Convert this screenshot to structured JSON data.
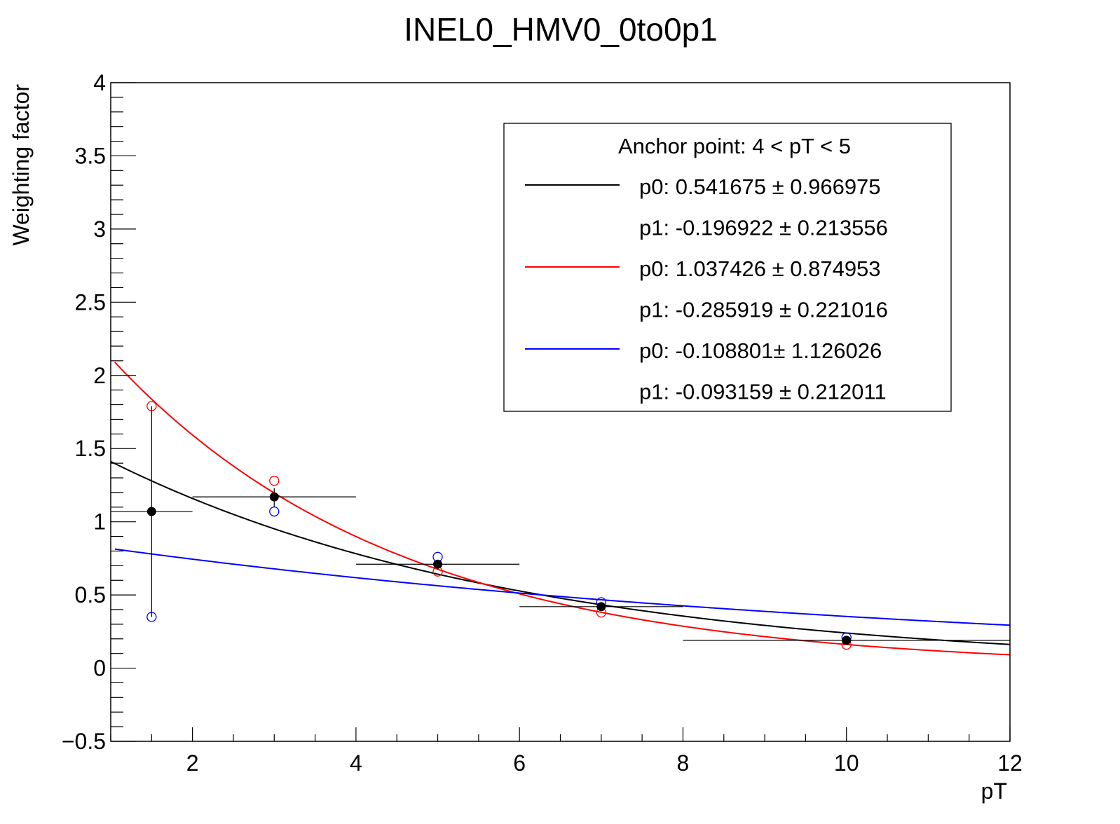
{
  "chart_data": {
    "type": "scatter",
    "title": "INEL0_HMV0_0to0p1",
    "xlabel": "pT",
    "ylabel": "Weighting factor",
    "xlim": [
      1,
      12
    ],
    "ylim": [
      -0.5,
      4
    ],
    "xticks": [
      2,
      4,
      6,
      8,
      10,
      12
    ],
    "xtick_labels": [
      "2",
      "4",
      "6",
      "8",
      "10",
      "12"
    ],
    "yticks": [
      -0.5,
      0,
      0.5,
      1,
      1.5,
      2,
      2.5,
      3,
      3.5,
      4
    ],
    "ytick_labels": [
      "−0.5",
      "0",
      "0.5",
      "1",
      "1.5",
      "2",
      "2.5",
      "3",
      "3.5",
      "4"
    ],
    "grid": false,
    "legend_placement": "top-right",
    "legend": {
      "header": "Anchor point: 4 < pT < 5",
      "entries": [
        {
          "color": "#000000",
          "line": true,
          "text": "p0: 0.541675 ± 0.966975"
        },
        {
          "color": null,
          "line": false,
          "text": "p1: -0.196922 ± 0.213556"
        },
        {
          "color": "#ff0000",
          "line": true,
          "text": "p0: 1.037426 ± 0.874953"
        },
        {
          "color": null,
          "line": false,
          "text": "p1: -0.285919 ± 0.221016"
        },
        {
          "color": "#0000ff",
          "line": true,
          "text": "p0: -0.108801± 1.126026"
        },
        {
          "color": null,
          "line": false,
          "text": "p1: -0.093159 ± 0.212011"
        }
      ]
    },
    "points_black": {
      "x": [
        1.5,
        3,
        5,
        7,
        10
      ],
      "y": [
        1.07,
        1.17,
        0.71,
        0.42,
        0.19
      ],
      "xerr_low": [
        1,
        2,
        4,
        6,
        8
      ],
      "xerr_high": [
        2,
        4,
        6,
        8,
        12
      ],
      "yerr_low": [
        0.35,
        1.1,
        0.7,
        0.41,
        0.19
      ],
      "yerr_high": [
        1.79,
        1.23,
        0.72,
        0.43,
        0.2
      ]
    },
    "points_red": {
      "x": [
        1.5,
        3,
        5,
        7,
        10
      ],
      "y": [
        1.79,
        1.28,
        0.66,
        0.38,
        0.16
      ]
    },
    "points_blue": {
      "x": [
        1.5,
        3,
        5,
        7,
        10
      ],
      "y": [
        0.35,
        1.07,
        0.76,
        0.45,
        0.21
      ]
    },
    "fits": [
      {
        "color": "#000000",
        "p0": 0.541675,
        "p1": -0.196922,
        "xrange": [
          1,
          12
        ]
      },
      {
        "color": "#ff0000",
        "p0": 1.037426,
        "p1": -0.285919,
        "xrange": [
          1.05,
          12
        ]
      },
      {
        "color": "#0000ff",
        "p0": -0.108801,
        "p1": -0.093159,
        "xrange": [
          1.05,
          12
        ]
      }
    ]
  }
}
